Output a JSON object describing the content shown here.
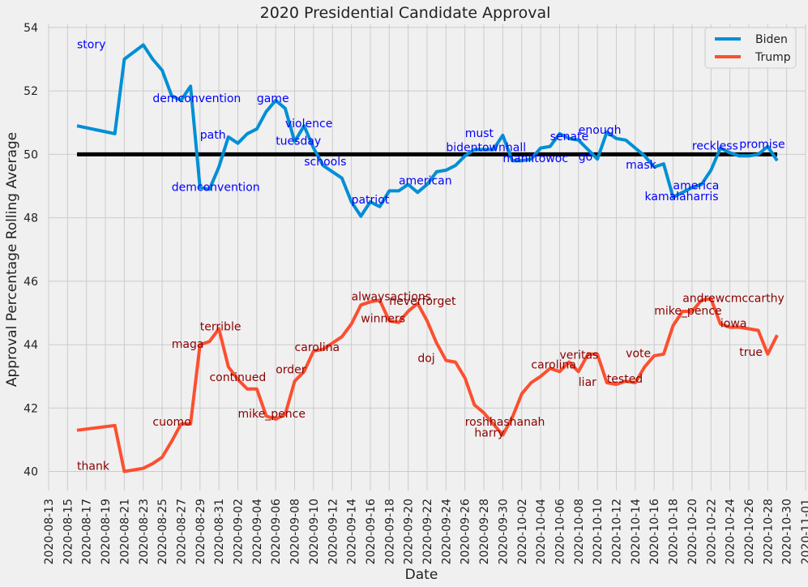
{
  "chart_data": {
    "type": "line",
    "title": "2020 Presidential Candidate Approval",
    "xlabel": "Date",
    "ylabel": "Approval Percentage Rolling Average",
    "xlim": [
      "2020-08-13",
      "2020-11-01"
    ],
    "ylim": [
      39.4,
      54.1
    ],
    "x_ticks": [
      "2020-08-13",
      "2020-08-15",
      "2020-08-17",
      "2020-08-19",
      "2020-08-21",
      "2020-08-23",
      "2020-08-25",
      "2020-08-27",
      "2020-08-29",
      "2020-08-31",
      "2020-09-02",
      "2020-09-04",
      "2020-09-06",
      "2020-09-08",
      "2020-09-10",
      "2020-09-12",
      "2020-09-14",
      "2020-09-16",
      "2020-09-18",
      "2020-09-20",
      "2020-09-22",
      "2020-09-24",
      "2020-09-26",
      "2020-09-28",
      "2020-09-30",
      "2020-10-02",
      "2020-10-04",
      "2020-10-06",
      "2020-10-08",
      "2020-10-10",
      "2020-10-12",
      "2020-10-14",
      "2020-10-16",
      "2020-10-18",
      "2020-10-20",
      "2020-10-22",
      "2020-10-24",
      "2020-10-26",
      "2020-10-28",
      "2020-10-30",
      "2020-11-01"
    ],
    "y_ticks": [
      40,
      42,
      44,
      46,
      48,
      50,
      52,
      54
    ],
    "grid": true,
    "legend_position": "top-right",
    "reference_line": {
      "y": 50,
      "x_start": "2020-08-16",
      "x_end": "2020-10-29",
      "color": "#000000"
    },
    "series": [
      {
        "name": "Biden",
        "color": "#008fd5",
        "points": [
          [
            "2020-08-16",
            50.9
          ],
          [
            "2020-08-20",
            50.65
          ],
          [
            "2020-08-21",
            53.0
          ],
          [
            "2020-08-23",
            53.45
          ],
          [
            "2020-08-24",
            53.0
          ],
          [
            "2020-08-25",
            52.65
          ],
          [
            "2020-08-26",
            51.85
          ],
          [
            "2020-08-27",
            51.7
          ],
          [
            "2020-08-28",
            52.15
          ],
          [
            "2020-08-29",
            48.95
          ],
          [
            "2020-08-30",
            48.9
          ],
          [
            "2020-08-31",
            49.6
          ],
          [
            "2020-09-01",
            50.55
          ],
          [
            "2020-09-02",
            50.35
          ],
          [
            "2020-09-03",
            50.65
          ],
          [
            "2020-09-04",
            50.8
          ],
          [
            "2020-09-05",
            51.35
          ],
          [
            "2020-09-06",
            51.7
          ],
          [
            "2020-09-07",
            51.45
          ],
          [
            "2020-09-08",
            50.4
          ],
          [
            "2020-09-09",
            50.9
          ],
          [
            "2020-09-10",
            50.2
          ],
          [
            "2020-09-11",
            49.65
          ],
          [
            "2020-09-12",
            49.45
          ],
          [
            "2020-09-13",
            49.25
          ],
          [
            "2020-09-14",
            48.5
          ],
          [
            "2020-09-15",
            48.05
          ],
          [
            "2020-09-16",
            48.5
          ],
          [
            "2020-09-17",
            48.35
          ],
          [
            "2020-09-18",
            48.85
          ],
          [
            "2020-09-19",
            48.85
          ],
          [
            "2020-09-20",
            49.05
          ],
          [
            "2020-09-21",
            48.8
          ],
          [
            "2020-09-22",
            49.05
          ],
          [
            "2020-09-23",
            49.45
          ],
          [
            "2020-09-24",
            49.5
          ],
          [
            "2020-09-25",
            49.65
          ],
          [
            "2020-09-26",
            49.95
          ],
          [
            "2020-09-27",
            50.15
          ],
          [
            "2020-09-28",
            50.15
          ],
          [
            "2020-09-29",
            50.15
          ],
          [
            "2020-09-30",
            50.6
          ],
          [
            "2020-10-01",
            49.8
          ],
          [
            "2020-10-02",
            49.8
          ],
          [
            "2020-10-03",
            49.85
          ],
          [
            "2020-10-04",
            50.2
          ],
          [
            "2020-10-05",
            50.25
          ],
          [
            "2020-10-06",
            50.65
          ],
          [
            "2020-10-07",
            50.5
          ],
          [
            "2020-10-08",
            50.45
          ],
          [
            "2020-10-09",
            50.15
          ],
          [
            "2020-10-10",
            49.85
          ],
          [
            "2020-10-11",
            50.7
          ],
          [
            "2020-10-12",
            50.5
          ],
          [
            "2020-10-13",
            50.45
          ],
          [
            "2020-10-14",
            50.2
          ],
          [
            "2020-10-15",
            49.95
          ],
          [
            "2020-10-16",
            49.6
          ],
          [
            "2020-10-17",
            49.7
          ],
          [
            "2020-10-18",
            48.65
          ],
          [
            "2020-10-19",
            48.8
          ],
          [
            "2020-10-20",
            48.95
          ],
          [
            "2020-10-21",
            49.05
          ],
          [
            "2020-10-22",
            49.5
          ],
          [
            "2020-10-23",
            50.2
          ],
          [
            "2020-10-24",
            50.05
          ],
          [
            "2020-10-25",
            49.95
          ],
          [
            "2020-10-26",
            49.95
          ],
          [
            "2020-10-27",
            50.0
          ],
          [
            "2020-10-28",
            50.25
          ],
          [
            "2020-10-29",
            49.8
          ]
        ]
      },
      {
        "name": "Trump",
        "color": "#fc4f30",
        "points": [
          [
            "2020-08-16",
            41.3
          ],
          [
            "2020-08-20",
            41.45
          ],
          [
            "2020-08-21",
            40.0
          ],
          [
            "2020-08-23",
            40.1
          ],
          [
            "2020-08-24",
            40.25
          ],
          [
            "2020-08-25",
            40.45
          ],
          [
            "2020-08-26",
            40.95
          ],
          [
            "2020-08-27",
            41.5
          ],
          [
            "2020-08-28",
            41.5
          ],
          [
            "2020-08-29",
            44.0
          ],
          [
            "2020-08-30",
            44.1
          ],
          [
            "2020-08-31",
            44.5
          ],
          [
            "2020-09-01",
            43.3
          ],
          [
            "2020-09-02",
            42.9
          ],
          [
            "2020-09-03",
            42.6
          ],
          [
            "2020-09-04",
            42.6
          ],
          [
            "2020-09-05",
            41.75
          ],
          [
            "2020-09-06",
            41.65
          ],
          [
            "2020-09-07",
            41.8
          ],
          [
            "2020-09-08",
            42.85
          ],
          [
            "2020-09-09",
            43.15
          ],
          [
            "2020-09-10",
            43.8
          ],
          [
            "2020-09-11",
            43.85
          ],
          [
            "2020-09-12",
            44.05
          ],
          [
            "2020-09-13",
            44.25
          ],
          [
            "2020-09-14",
            44.65
          ],
          [
            "2020-09-15",
            45.25
          ],
          [
            "2020-09-16",
            45.35
          ],
          [
            "2020-09-17",
            45.4
          ],
          [
            "2020-09-18",
            44.75
          ],
          [
            "2020-09-19",
            44.7
          ],
          [
            "2020-09-20",
            45.05
          ],
          [
            "2020-09-21",
            45.3
          ],
          [
            "2020-09-22",
            44.75
          ],
          [
            "2020-09-23",
            44.05
          ],
          [
            "2020-09-24",
            43.5
          ],
          [
            "2020-09-25",
            43.45
          ],
          [
            "2020-09-26",
            42.95
          ],
          [
            "2020-09-27",
            42.1
          ],
          [
            "2020-09-28",
            41.85
          ],
          [
            "2020-09-29",
            41.5
          ],
          [
            "2020-09-30",
            41.15
          ],
          [
            "2020-10-01",
            41.7
          ],
          [
            "2020-10-02",
            42.45
          ],
          [
            "2020-10-03",
            42.8
          ],
          [
            "2020-10-04",
            43.0
          ],
          [
            "2020-10-05",
            43.25
          ],
          [
            "2020-10-06",
            43.15
          ],
          [
            "2020-10-07",
            43.45
          ],
          [
            "2020-10-08",
            43.15
          ],
          [
            "2020-10-09",
            43.7
          ],
          [
            "2020-10-10",
            43.7
          ],
          [
            "2020-10-11",
            42.8
          ],
          [
            "2020-10-12",
            42.75
          ],
          [
            "2020-10-13",
            42.85
          ],
          [
            "2020-10-14",
            42.8
          ],
          [
            "2020-10-15",
            43.3
          ],
          [
            "2020-10-16",
            43.65
          ],
          [
            "2020-10-17",
            43.7
          ],
          [
            "2020-10-18",
            44.6
          ],
          [
            "2020-10-19",
            45.05
          ],
          [
            "2020-10-20",
            45.05
          ],
          [
            "2020-10-21",
            45.4
          ],
          [
            "2020-10-22",
            45.45
          ],
          [
            "2020-10-23",
            44.65
          ],
          [
            "2020-10-24",
            44.55
          ],
          [
            "2020-10-25",
            44.55
          ],
          [
            "2020-10-26",
            44.5
          ],
          [
            "2020-10-27",
            44.45
          ],
          [
            "2020-10-28",
            43.7
          ],
          [
            "2020-10-29",
            44.3
          ]
        ]
      }
    ],
    "annotations": [
      {
        "text": "story",
        "x": "2020-08-16",
        "y": 53.35,
        "color": "#0000ff"
      },
      {
        "text": "demconvention",
        "x": "2020-08-24",
        "y": 51.65,
        "color": "#0000ff"
      },
      {
        "text": "game",
        "x": "2020-09-04",
        "y": 51.65,
        "color": "#0000ff"
      },
      {
        "text": "violence",
        "x": "2020-09-07",
        "y": 50.85,
        "color": "#0000ff"
      },
      {
        "text": "path",
        "x": "2020-08-29",
        "y": 50.5,
        "color": "#0000ff"
      },
      {
        "text": "tuesday",
        "x": "2020-09-06",
        "y": 50.3,
        "color": "#0000ff"
      },
      {
        "text": "schools",
        "x": "2020-09-09",
        "y": 49.65,
        "color": "#0000ff"
      },
      {
        "text": "demconvention",
        "x": "2020-08-26",
        "y": 48.85,
        "color": "#0000ff"
      },
      {
        "text": "patriot",
        "x": "2020-09-14",
        "y": 48.45,
        "color": "#0000ff"
      },
      {
        "text": "american",
        "x": "2020-09-19",
        "y": 49.05,
        "color": "#0000ff"
      },
      {
        "text": "must",
        "x": "2020-09-26",
        "y": 50.55,
        "color": "#0000ff"
      },
      {
        "text": "bidentownhall",
        "x": "2020-09-24",
        "y": 50.1,
        "color": "#0000ff"
      },
      {
        "text": "maniltowoc",
        "x": "2020-09-30",
        "y": 49.75,
        "color": "#0000ff"
      },
      {
        "text": "senate",
        "x": "2020-10-05",
        "y": 50.45,
        "color": "#0000ff"
      },
      {
        "text": "go",
        "x": "2020-10-08",
        "y": 49.8,
        "color": "#0000ff"
      },
      {
        "text": "enough",
        "x": "2020-10-08",
        "y": 50.65,
        "color": "#0000ff"
      },
      {
        "text": "mask",
        "x": "2020-10-13",
        "y": 49.55,
        "color": "#0000ff"
      },
      {
        "text": "america",
        "x": "2020-10-18",
        "y": 48.9,
        "color": "#0000ff"
      },
      {
        "text": "kamalaharris",
        "x": "2020-10-15",
        "y": 48.55,
        "color": "#0000ff"
      },
      {
        "text": "reckless",
        "x": "2020-10-20",
        "y": 50.15,
        "color": "#0000ff"
      },
      {
        "text": "promise",
        "x": "2020-10-25",
        "y": 50.2,
        "color": "#0000ff"
      },
      {
        "text": "thank",
        "x": "2020-08-16",
        "y": 40.05,
        "color": "#8b0000"
      },
      {
        "text": "cuomo",
        "x": "2020-08-24",
        "y": 41.45,
        "color": "#8b0000"
      },
      {
        "text": "maga",
        "x": "2020-08-26",
        "y": 43.9,
        "color": "#8b0000"
      },
      {
        "text": "terrible",
        "x": "2020-08-29",
        "y": 44.45,
        "color": "#8b0000"
      },
      {
        "text": "continued",
        "x": "2020-08-30",
        "y": 42.85,
        "color": "#8b0000"
      },
      {
        "text": "mike_pence",
        "x": "2020-09-02",
        "y": 41.7,
        "color": "#8b0000"
      },
      {
        "text": "order",
        "x": "2020-09-06",
        "y": 43.1,
        "color": "#8b0000"
      },
      {
        "text": "carolina",
        "x": "2020-09-08",
        "y": 43.8,
        "color": "#8b0000"
      },
      {
        "text": "alwaysactions",
        "x": "2020-09-14",
        "y": 45.4,
        "color": "#8b0000"
      },
      {
        "text": "neverforget",
        "x": "2020-09-18",
        "y": 45.25,
        "color": "#8b0000"
      },
      {
        "text": "winners",
        "x": "2020-09-15",
        "y": 44.7,
        "color": "#8b0000"
      },
      {
        "text": "doj",
        "x": "2020-09-21",
        "y": 43.45,
        "color": "#8b0000"
      },
      {
        "text": "roshhashanah",
        "x": "2020-09-26",
        "y": 41.45,
        "color": "#8b0000"
      },
      {
        "text": "harry",
        "x": "2020-09-27",
        "y": 41.1,
        "color": "#8b0000"
      },
      {
        "text": "carolina",
        "x": "2020-10-03",
        "y": 43.25,
        "color": "#8b0000"
      },
      {
        "text": "veritas",
        "x": "2020-10-06",
        "y": 43.55,
        "color": "#8b0000"
      },
      {
        "text": "liar",
        "x": "2020-10-08",
        "y": 42.7,
        "color": "#8b0000"
      },
      {
        "text": "tested",
        "x": "2020-10-11",
        "y": 42.8,
        "color": "#8b0000"
      },
      {
        "text": "vote",
        "x": "2020-10-13",
        "y": 43.6,
        "color": "#8b0000"
      },
      {
        "text": "mike_pence",
        "x": "2020-10-16",
        "y": 44.95,
        "color": "#8b0000"
      },
      {
        "text": "andrewcmccarthy",
        "x": "2020-10-19",
        "y": 45.35,
        "color": "#8b0000"
      },
      {
        "text": "iowa",
        "x": "2020-10-23",
        "y": 44.55,
        "color": "#8b0000"
      },
      {
        "text": "true",
        "x": "2020-10-25",
        "y": 43.65,
        "color": "#8b0000"
      }
    ]
  }
}
